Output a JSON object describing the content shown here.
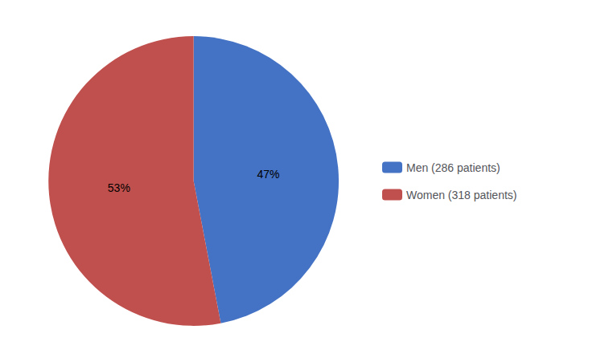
{
  "chart_data": {
    "type": "pie",
    "categories": [
      "Men (286 patients)",
      "Women (318 patients)"
    ],
    "values": [
      47,
      53
    ],
    "value_labels": [
      "47%",
      "53%"
    ],
    "colors": [
      "#4472C4",
      "#C0504D"
    ],
    "data_labels": true,
    "legend": "right"
  }
}
